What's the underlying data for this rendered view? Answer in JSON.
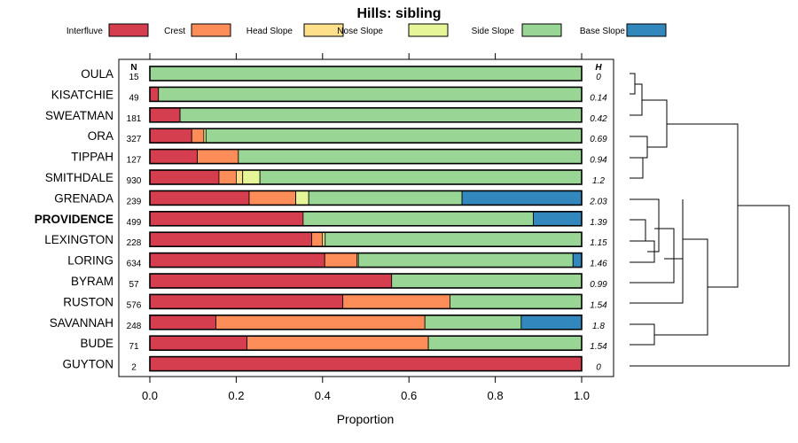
{
  "chart_data": {
    "type": "bar",
    "stacked": true,
    "orientation": "horizontal",
    "title": "Hills: sibling",
    "xlabel": "Proportion",
    "ylabel": "",
    "xlim": [
      0,
      1
    ],
    "xticks": [
      0.0,
      0.2,
      0.4,
      0.6,
      0.8,
      1.0
    ],
    "xtick_labels": [
      "0.0",
      "0.2",
      "0.4",
      "0.6",
      "0.8",
      "1.0"
    ],
    "legend_position": "top",
    "n_header": "N",
    "h_header": "H",
    "highlight": "PROVIDENCE",
    "categories": [
      "OULA",
      "KISATCHIE",
      "SWEATMAN",
      "ORA",
      "TIPPAH",
      "SMITHDALE",
      "GRENADA",
      "PROVIDENCE",
      "LEXINGTON",
      "LORING",
      "BYRAM",
      "RUSTON",
      "SAVANNAH",
      "BUDE",
      "GUYTON"
    ],
    "n": [
      "15",
      "49",
      "181",
      "327",
      "127",
      "930",
      "239",
      "499",
      "228",
      "634",
      "57",
      "576",
      "248",
      "71",
      "2"
    ],
    "h": [
      "0",
      "0.14",
      "0.42",
      "0.69",
      "0.94",
      "1.2",
      "2.03",
      "1.39",
      "1.15",
      "1.46",
      "0.99",
      "1.54",
      "1.8",
      "1.54",
      "0"
    ],
    "series": [
      {
        "name": "Interfluve",
        "color": "#d53e4f",
        "values": [
          0,
          0.02,
          0.07,
          0.097,
          0.11,
          0.16,
          0.23,
          0.355,
          0.375,
          0.405,
          0.56,
          0.447,
          0.153,
          0.225,
          1.0
        ]
      },
      {
        "name": "Crest",
        "color": "#fc8d59",
        "values": [
          0,
          0,
          0,
          0.028,
          0.095,
          0.04,
          0.108,
          0,
          0.025,
          0.075,
          0,
          0.248,
          0.484,
          0.42,
          0
        ]
      },
      {
        "name": "Head Slope",
        "color": "#fee08b",
        "values": [
          0,
          0,
          0,
          0,
          0,
          0.015,
          0,
          0,
          0,
          0,
          0,
          0,
          0,
          0,
          0
        ]
      },
      {
        "name": "Nose Slope",
        "color": "#e6f598",
        "values": [
          0,
          0,
          0,
          0.005,
          0,
          0.04,
          0.03,
          0,
          0.006,
          0.003,
          0,
          0,
          0,
          0,
          0
        ]
      },
      {
        "name": "Side Slope",
        "color": "#99d594",
        "values": [
          1.0,
          0.98,
          0.93,
          0.87,
          0.795,
          0.745,
          0.355,
          0.533,
          0.594,
          0.497,
          0.44,
          0.305,
          0.223,
          0.355,
          0
        ]
      },
      {
        "name": "Base Slope",
        "color": "#3288bd",
        "values": [
          0,
          0,
          0,
          0,
          0,
          0,
          0.277,
          0.112,
          0,
          0.02,
          0,
          0,
          0.14,
          0,
          0
        ]
      }
    ]
  }
}
